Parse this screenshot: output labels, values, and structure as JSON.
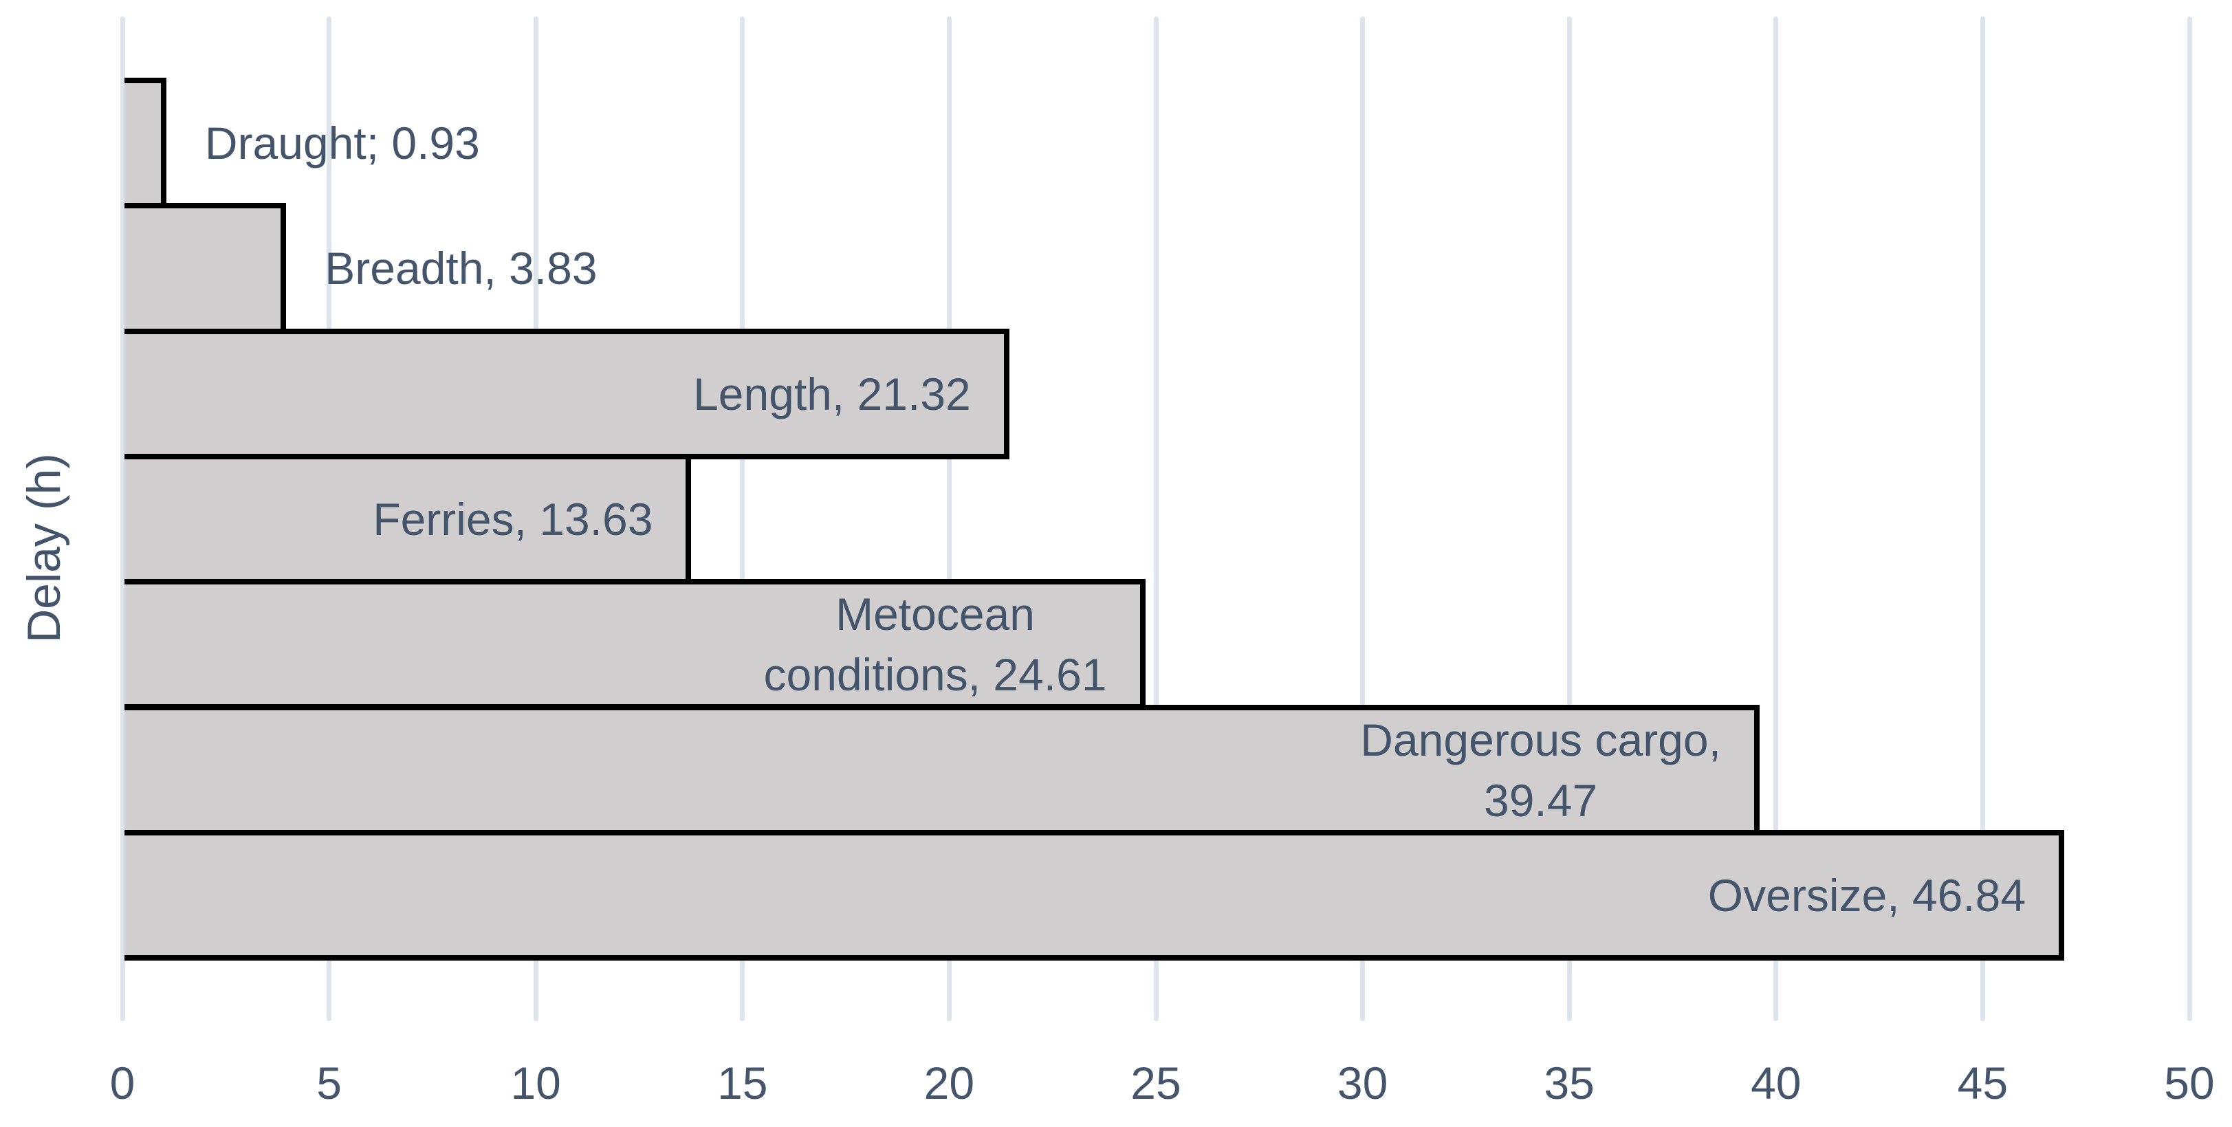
{
  "chart_data": {
    "type": "bar",
    "orientation": "horizontal",
    "title": "",
    "xlabel": "",
    "ylabel": "Delay (h)",
    "categories": [
      "Draught",
      "Breadth",
      "Length",
      "Ferries",
      "Metocean conditions",
      "Dangerous cargo",
      "Oversize"
    ],
    "values": [
      0.93,
      3.83,
      21.32,
      13.63,
      24.61,
      39.47,
      46.84
    ],
    "bar_labels": [
      "Draught; 0.93",
      "Breadth, 3.83",
      "Length, 21.32",
      "Ferries, 13.63",
      "Metocean\nconditions, 24.61",
      "Dangerous cargo,\n39.47",
      "Oversize, 46.84"
    ],
    "label_placement": [
      "outside",
      "outside",
      "inside",
      "inside",
      "inside",
      "inside",
      "inside"
    ],
    "xlim": [
      0,
      50
    ],
    "x_ticks": [
      0,
      5,
      10,
      15,
      20,
      25,
      30,
      35,
      40,
      45,
      50
    ],
    "grid": "vertical-gridlines-on",
    "legend": "none",
    "colors": {
      "bar_fill": "#d0cece",
      "bar_border": "#000000",
      "gridline": "#dde4ec",
      "text": "#44546A",
      "background": "#ffffff"
    }
  }
}
